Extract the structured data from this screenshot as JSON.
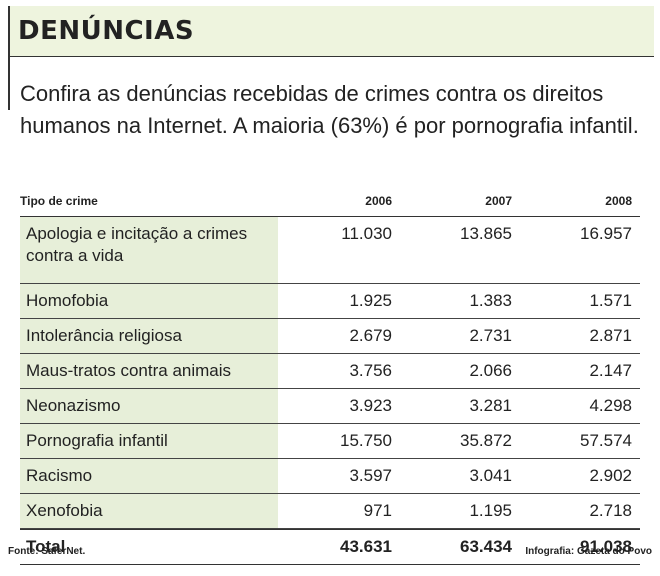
{
  "header": {
    "title": "DENÚNCIAS",
    "intro": "Confira as denúncias recebidas de crimes contra os direitos humanos na Internet. A maioria (63%) é por pornografia infantil."
  },
  "table": {
    "columns": [
      "Tipo de crime",
      "2006",
      "2007",
      "2008"
    ],
    "rows": [
      [
        "Apologia e incitação a crimes contra a vida",
        "11.030",
        "13.865",
        "16.957"
      ],
      [
        "Homofobia",
        "1.925",
        "1.383",
        "1.571"
      ],
      [
        "Intolerância religiosa",
        "2.679",
        "2.731",
        "2.871"
      ],
      [
        "Maus-tratos contra animais",
        "3.756",
        "2.066",
        "2.147"
      ],
      [
        "Neonazismo",
        "3.923",
        "3.281",
        "4.298"
      ],
      [
        "Pornografia infantil",
        "15.750",
        "35.872",
        "57.574"
      ],
      [
        "Racismo",
        "3.597",
        "3.041",
        "2.902"
      ],
      [
        "Xenofobia",
        "971",
        "1.195",
        "2.718"
      ]
    ],
    "total": [
      "Total",
      "43.631",
      "63.434",
      "91.038"
    ]
  },
  "footer": {
    "source": "Fonte: SaferNet.",
    "credit": "Infografia: Gazeta do Povo"
  }
}
